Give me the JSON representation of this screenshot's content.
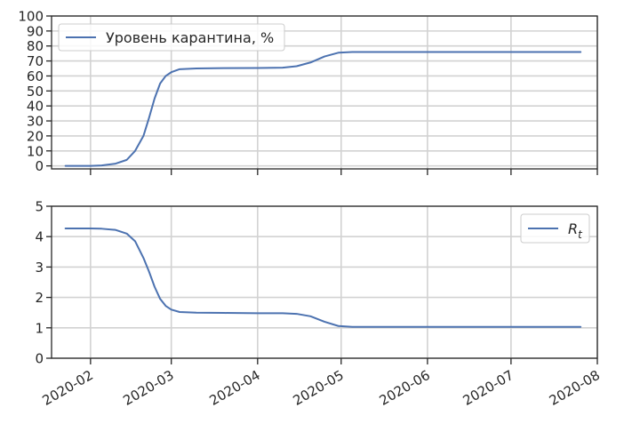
{
  "chart_data": [
    {
      "type": "line",
      "grid": true,
      "legend": "top-left",
      "ylim": [
        -2,
        100
      ],
      "yticks": [
        0,
        10,
        20,
        30,
        40,
        50,
        60,
        70,
        80,
        90,
        100
      ],
      "xlim": [
        "2020-01-18",
        "2020-08-01"
      ],
      "series": [
        {
          "name": "Уровень карантина, %",
          "color": "#4c72b0",
          "x": [
            "2020-01-23",
            "2020-02-01",
            "2020-02-05",
            "2020-02-10",
            "2020-02-14",
            "2020-02-17",
            "2020-02-20",
            "2020-02-22",
            "2020-02-24",
            "2020-02-26",
            "2020-02-28",
            "2020-03-01",
            "2020-03-04",
            "2020-03-10",
            "2020-03-20",
            "2020-04-01",
            "2020-04-10",
            "2020-04-15",
            "2020-04-20",
            "2020-04-25",
            "2020-04-30",
            "2020-05-05",
            "2020-05-15",
            "2020-06-01",
            "2020-07-01",
            "2020-07-26"
          ],
          "y": [
            0,
            0,
            0.3,
            1.5,
            4,
            10,
            20,
            32,
            45,
            55,
            60,
            62.5,
            64.5,
            65,
            65.2,
            65.3,
            65.5,
            66.5,
            69,
            73,
            75.5,
            76,
            76,
            76,
            76,
            76
          ]
        }
      ]
    },
    {
      "type": "line",
      "grid": true,
      "legend": "top-right",
      "ylim": [
        0,
        5
      ],
      "yticks": [
        0,
        1,
        2,
        3,
        4,
        5
      ],
      "xlim": [
        "2020-01-18",
        "2020-08-01"
      ],
      "xticks": [
        "2020-02",
        "2020-03",
        "2020-04",
        "2020-05",
        "2020-06",
        "2020-07",
        "2020-08"
      ],
      "series": [
        {
          "name": "R",
          "name_subscript": "t",
          "color": "#4c72b0",
          "x": [
            "2020-01-23",
            "2020-02-01",
            "2020-02-05",
            "2020-02-10",
            "2020-02-14",
            "2020-02-17",
            "2020-02-20",
            "2020-02-22",
            "2020-02-24",
            "2020-02-26",
            "2020-02-28",
            "2020-03-01",
            "2020-03-04",
            "2020-03-10",
            "2020-03-20",
            "2020-04-01",
            "2020-04-10",
            "2020-04-15",
            "2020-04-20",
            "2020-04-25",
            "2020-04-30",
            "2020-05-05",
            "2020-05-15",
            "2020-06-01",
            "2020-07-01",
            "2020-07-26"
          ],
          "y": [
            4.27,
            4.27,
            4.26,
            4.22,
            4.1,
            3.85,
            3.3,
            2.85,
            2.35,
            1.95,
            1.72,
            1.6,
            1.52,
            1.5,
            1.49,
            1.48,
            1.48,
            1.46,
            1.38,
            1.2,
            1.06,
            1.03,
            1.03,
            1.03,
            1.03,
            1.03
          ]
        }
      ]
    }
  ]
}
